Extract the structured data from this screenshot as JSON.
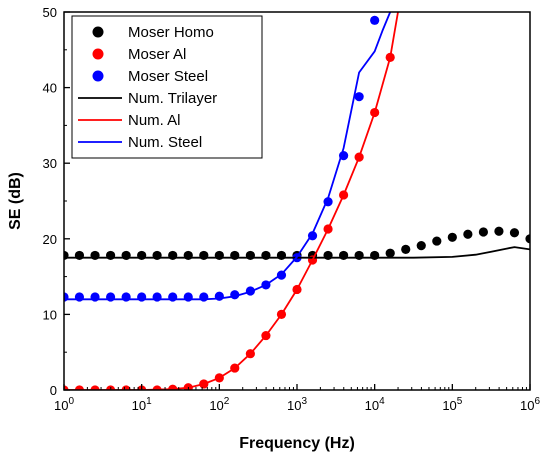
{
  "chart_data": {
    "type": "scatter",
    "xlabel": "Frequency (Hz)",
    "ylabel": "SE (dB)",
    "xscale": "log",
    "xlim": [
      1,
      1000000
    ],
    "ylim": [
      0,
      50
    ],
    "x_ticks": [
      {
        "value": 1,
        "base": "10",
        "exp": "0"
      },
      {
        "value": 10,
        "base": "10",
        "exp": "1"
      },
      {
        "value": 100,
        "base": "10",
        "exp": "2"
      },
      {
        "value": 1000,
        "base": "10",
        "exp": "3"
      },
      {
        "value": 10000,
        "base": "10",
        "exp": "4"
      },
      {
        "value": 100000,
        "base": "10",
        "exp": "5"
      },
      {
        "value": 1000000,
        "base": "10",
        "exp": "6"
      }
    ],
    "y_ticks": [
      0,
      10,
      20,
      30,
      40,
      50
    ],
    "grid": false,
    "legend_position": "top-left",
    "series": [
      {
        "name": "Moser Homo",
        "kind": "points",
        "color": "#000000",
        "x": [
          1,
          1.58,
          2.51,
          3.98,
          6.31,
          10,
          15.8,
          25.1,
          39.8,
          63.1,
          100,
          158,
          251,
          398,
          631,
          1000,
          1585,
          2512,
          3981,
          6310,
          10000,
          15850,
          25120,
          39810,
          63100,
          100000,
          158500,
          251200,
          398100,
          631000,
          1000000
        ],
        "y": [
          17.8,
          17.8,
          17.8,
          17.8,
          17.8,
          17.8,
          17.8,
          17.8,
          17.8,
          17.8,
          17.8,
          17.8,
          17.8,
          17.8,
          17.8,
          17.8,
          17.8,
          17.8,
          17.8,
          17.8,
          17.8,
          18.1,
          18.6,
          19.1,
          19.7,
          20.2,
          20.6,
          20.9,
          21.0,
          20.8,
          20.0
        ]
      },
      {
        "name": "Moser Al",
        "kind": "points",
        "color": "#ff0000",
        "x": [
          1,
          1.58,
          2.51,
          3.98,
          6.31,
          10,
          15.8,
          25.1,
          39.8,
          63.1,
          100,
          158,
          251,
          398,
          631,
          1000,
          1585,
          2512,
          3981,
          6310,
          10000,
          15850
        ],
        "y": [
          0,
          0,
          0,
          0,
          0,
          0,
          0,
          0.1,
          0.3,
          0.8,
          1.6,
          2.9,
          4.8,
          7.2,
          10.0,
          13.3,
          17.2,
          21.3,
          25.8,
          30.8,
          36.7,
          44.0
        ]
      },
      {
        "name": "Moser Steel",
        "kind": "points",
        "color": "#0000ff",
        "x": [
          1,
          1.58,
          2.51,
          3.98,
          6.31,
          10,
          15.8,
          25.1,
          39.8,
          63.1,
          100,
          158,
          251,
          398,
          631,
          1000,
          1585,
          2512,
          3981,
          6310,
          10000
        ],
        "y": [
          12.3,
          12.3,
          12.3,
          12.3,
          12.3,
          12.3,
          12.3,
          12.3,
          12.3,
          12.3,
          12.4,
          12.6,
          13.1,
          13.9,
          15.2,
          17.5,
          20.4,
          24.9,
          31.0,
          38.8,
          48.9
        ]
      },
      {
        "name": "Num. Trilayer",
        "kind": "line",
        "color": "#000000",
        "x": [
          1,
          10,
          100,
          1000,
          10000,
          31620,
          100000,
          200000,
          316200,
          501200,
          631000,
          1000000
        ],
        "y": [
          17.5,
          17.5,
          17.5,
          17.5,
          17.5,
          17.5,
          17.6,
          17.9,
          18.3,
          18.7,
          18.9,
          18.6
        ]
      },
      {
        "name": "Num. Al",
        "kind": "line",
        "color": "#ff0000",
        "x": [
          1,
          10,
          25.1,
          39.8,
          63.1,
          100,
          158,
          251,
          398,
          631,
          1000,
          1585,
          2512,
          3981,
          6310,
          10000,
          15850,
          19950
        ],
        "y": [
          0,
          0,
          0.1,
          0.3,
          0.8,
          1.6,
          2.9,
          4.8,
          7.2,
          10.0,
          13.3,
          17.2,
          21.3,
          25.8,
          30.8,
          36.7,
          44.0,
          50.0
        ]
      },
      {
        "name": "Num. Steel",
        "kind": "line",
        "color": "#0000ff",
        "x": [
          1,
          10,
          63.1,
          100,
          158,
          251,
          398,
          631,
          1000,
          1585,
          2512,
          3981,
          6310,
          10000,
          12590,
          15850
        ],
        "y": [
          12.0,
          12.0,
          12.0,
          12.1,
          12.4,
          13.0,
          13.9,
          15.3,
          17.6,
          20.7,
          25.4,
          32.0,
          42.0,
          44.8,
          47.5,
          50.0
        ]
      }
    ]
  }
}
